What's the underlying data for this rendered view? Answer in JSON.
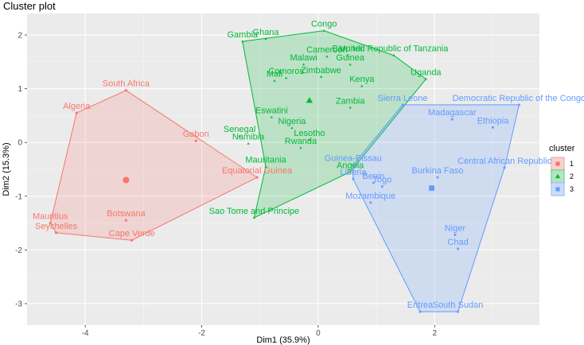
{
  "chart_data": {
    "type": "scatter",
    "title": "Cluster plot",
    "xlabel": "Dim1 (35.9%)",
    "ylabel": "Dim2 (15.3%)",
    "xlim": [
      -5.0,
      3.8
    ],
    "ylim": [
      -3.4,
      2.4
    ],
    "xticks": [
      -4,
      -2,
      0,
      2
    ],
    "yticks": [
      -3,
      -2,
      -1,
      0,
      1,
      2
    ],
    "grid": true,
    "legend_title": "cluster",
    "legend_position": "right",
    "clusters": [
      {
        "name": "1",
        "color": "#F8766D",
        "shape": "circle",
        "center": {
          "x": -3.3,
          "y": -0.7
        },
        "hull": [
          "Algeria",
          "South Africa",
          "Equatorial Guinea",
          "Cape Verde",
          "Seychelles",
          "Mauritius"
        ],
        "points": [
          {
            "label": "South Africa",
            "x": -3.3,
            "y": 0.97
          },
          {
            "label": "Algeria",
            "x": -4.15,
            "y": 0.55
          },
          {
            "label": "Gabon",
            "x": -2.1,
            "y": 0.03
          },
          {
            "label": "Equatorial Guinea",
            "x": -1.05,
            "y": -0.65
          },
          {
            "label": "Botswana",
            "x": -3.3,
            "y": -1.45
          },
          {
            "label": "Mauritius",
            "x": -4.6,
            "y": -1.5
          },
          {
            "label": "Seychelles",
            "x": -4.5,
            "y": -1.68
          },
          {
            "label": "Cape Verde",
            "x": -3.2,
            "y": -1.82
          }
        ]
      },
      {
        "name": "2",
        "color": "#00BA38",
        "shape": "triangle",
        "center": {
          "x": -0.15,
          "y": 0.78
        },
        "hull": [
          "Gambia",
          "Congo",
          "United Republic of Tanzania",
          "Uganda",
          "Angola",
          "Sao Tome and Principe",
          "Mauritania"
        ],
        "points": [
          {
            "label": "Congo",
            "x": 0.1,
            "y": 2.08
          },
          {
            "label": "Ghana",
            "x": -0.9,
            "y": 1.93
          },
          {
            "label": "Gambia",
            "x": -1.3,
            "y": 1.88
          },
          {
            "label": "United Republic of Tanzania",
            "x": 1.3,
            "y": 1.62
          },
          {
            "label": "Cameroon",
            "x": 0.15,
            "y": 1.6
          },
          {
            "label": "Burundi",
            "x": 0.5,
            "y": 1.62
          },
          {
            "label": "Guinea",
            "x": 0.55,
            "y": 1.45
          },
          {
            "label": "Malawi",
            "x": -0.25,
            "y": 1.45
          },
          {
            "label": "Zimbabwe",
            "x": 0.05,
            "y": 1.22
          },
          {
            "label": "Comoros",
            "x": -0.55,
            "y": 1.2
          },
          {
            "label": "Mali",
            "x": -0.75,
            "y": 1.15
          },
          {
            "label": "Uganda",
            "x": 1.85,
            "y": 1.18
          },
          {
            "label": "Kenya",
            "x": 0.75,
            "y": 1.05
          },
          {
            "label": "Zambia",
            "x": 0.55,
            "y": 0.65
          },
          {
            "label": "Eswatini",
            "x": -0.8,
            "y": 0.47
          },
          {
            "label": "Nigeria",
            "x": -0.45,
            "y": 0.27
          },
          {
            "label": "Senegal",
            "x": -1.35,
            "y": 0.12
          },
          {
            "label": "Namibia",
            "x": -1.2,
            "y": -0.02
          },
          {
            "label": "Lesotho",
            "x": -0.15,
            "y": 0.05
          },
          {
            "label": "Rwanda",
            "x": -0.3,
            "y": -0.1
          },
          {
            "label": "Mauritania",
            "x": -0.9,
            "y": -0.45
          },
          {
            "label": "Angola",
            "x": 0.55,
            "y": -0.55
          },
          {
            "label": "Sao Tome and Principe",
            "x": -1.1,
            "y": -1.4
          }
        ]
      },
      {
        "name": "3",
        "color": "#619CFF",
        "shape": "square",
        "center": {
          "x": 1.95,
          "y": -0.85
        },
        "hull": [
          "Sierra Leone",
          "Democratic Republic of the Congo",
          "Central African Republic",
          "South Sudan",
          "Eritrea",
          "Liberia",
          "Guinea-Bissau"
        ],
        "points": [
          {
            "label": "Sierra Leone",
            "x": 1.45,
            "y": 0.7
          },
          {
            "label": "Democratic Republic of the Congo",
            "x": 3.45,
            "y": 0.7
          },
          {
            "label": "Madagascar",
            "x": 2.3,
            "y": 0.43
          },
          {
            "label": "Ethiopia",
            "x": 3.0,
            "y": 0.28
          },
          {
            "label": "Guinea-Bissau",
            "x": 0.6,
            "y": -0.42
          },
          {
            "label": "Central African Republic",
            "x": 3.2,
            "y": -0.47
          },
          {
            "label": "Liberia",
            "x": 0.6,
            "y": -0.68
          },
          {
            "label": "Burkina Faso",
            "x": 2.05,
            "y": -0.65
          },
          {
            "label": "Benin",
            "x": 0.95,
            "y": -0.75
          },
          {
            "label": "Togo",
            "x": 1.1,
            "y": -0.82
          },
          {
            "label": "Mozambique",
            "x": 0.9,
            "y": -1.12
          },
          {
            "label": "Niger",
            "x": 2.35,
            "y": -1.72
          },
          {
            "label": "Chad",
            "x": 2.4,
            "y": -1.98
          },
          {
            "label": "Eritrea",
            "x": 1.75,
            "y": -3.15
          },
          {
            "label": "South Sudan",
            "x": 2.4,
            "y": -3.15
          }
        ]
      }
    ]
  }
}
